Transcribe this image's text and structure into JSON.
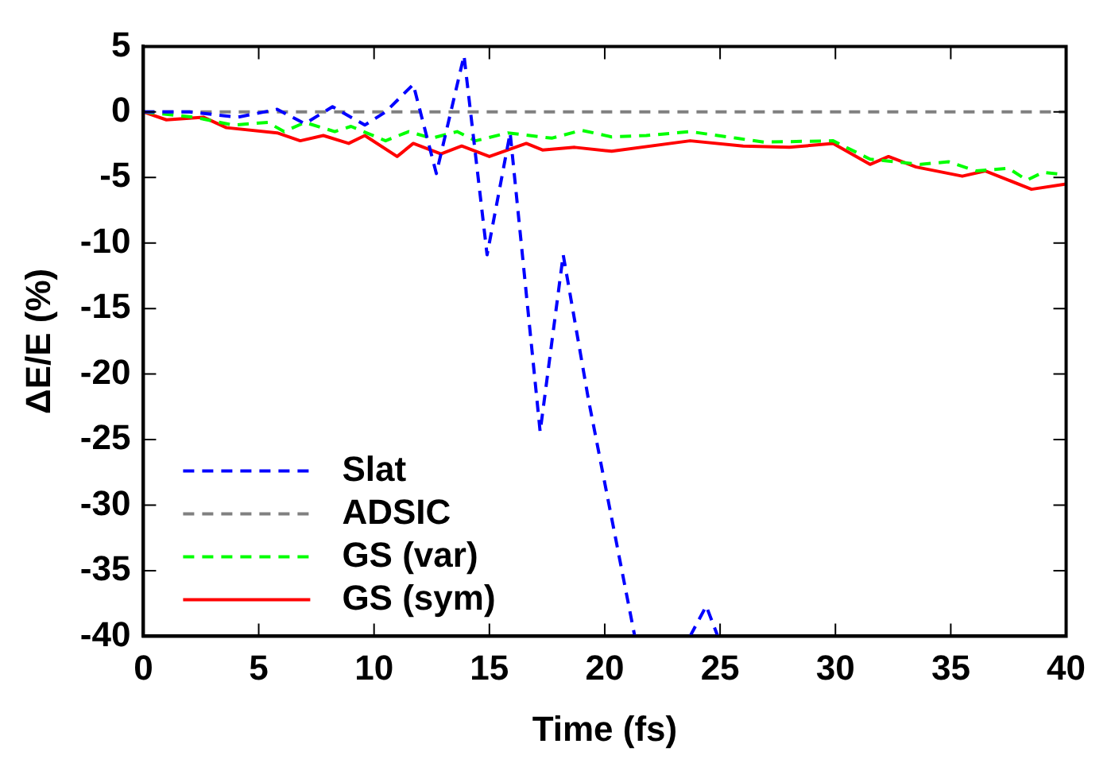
{
  "chart_data": {
    "type": "line",
    "xlabel": "Time (fs)",
    "ylabel": "ΔE/E (%)",
    "xlim": [
      0,
      40
    ],
    "xticks": [
      0,
      5,
      10,
      15,
      20,
      25,
      30,
      35,
      40
    ],
    "ylim": [
      -40,
      5
    ],
    "yticks": [
      5,
      0,
      -5,
      -10,
      -15,
      -20,
      -25,
      -30,
      -35,
      -40
    ],
    "grid": false,
    "legend": "bottom left",
    "marker": "none",
    "series": [
      {
        "name": "Slat",
        "color": "#0000ff",
        "line_style": "dashed",
        "x": [
          0,
          2,
          4.1,
          5.8,
          7,
          8.2,
          9.6,
          10.5,
          11.7,
          12.7,
          13.9,
          14.9,
          15.9,
          17.2,
          18.2,
          19.3,
          21.3,
          21.5,
          23.7,
          24.4,
          24.9
        ],
        "values": [
          0,
          0,
          -0.4,
          0.2,
          -0.9,
          0.4,
          -1,
          0,
          2.1,
          -4.7,
          4.3,
          -10.9,
          -1.6,
          -24.4,
          -10.9,
          -22,
          -40,
          null,
          -40,
          -37.7,
          -40
        ]
      },
      {
        "name": "ADSIC",
        "color": "#808080",
        "line_style": "dashed",
        "x": [
          0,
          40
        ],
        "values": [
          0,
          0
        ]
      },
      {
        "name": "GS (var)",
        "color": "#00ff00",
        "line_style": "dashed",
        "x": [
          0,
          2.2,
          3.9,
          5.4,
          6.1,
          7,
          8.3,
          9,
          10.5,
          11.5,
          12.5,
          13.6,
          14.4,
          15.8,
          17.7,
          19,
          20.3,
          21.8,
          23.7,
          25.7,
          26.9,
          29.9,
          31.5,
          33.7,
          34.9,
          36.1,
          37.5,
          38.3,
          39,
          40
        ],
        "values": [
          0,
          -0.4,
          -1,
          -0.8,
          -1.5,
          -0.8,
          -1.5,
          -1.1,
          -2.2,
          -1.5,
          -2,
          -1.5,
          -2.2,
          -1.6,
          -2,
          -1.4,
          -1.9,
          -1.8,
          -1.5,
          -2,
          -2.3,
          -2.2,
          -3.6,
          -4,
          -3.8,
          -4.5,
          -4.3,
          -5.2,
          -4.6,
          -4.8
        ]
      },
      {
        "name": "GS (sym)",
        "color": "#ff0000",
        "line_style": "solid",
        "x": [
          0,
          1,
          2.6,
          3.6,
          5.8,
          6.8,
          7.8,
          8.9,
          9.6,
          11,
          11.7,
          12.9,
          13.8,
          15,
          16.6,
          17.3,
          18.7,
          20.3,
          23.7,
          26,
          28,
          29.9,
          31.5,
          32.3,
          33.5,
          35.5,
          36.5,
          37.5,
          38.5,
          40
        ],
        "values": [
          0,
          -0.6,
          -0.4,
          -1.2,
          -1.6,
          -2.2,
          -1.8,
          -2.4,
          -1.8,
          -3.4,
          -2.4,
          -3.2,
          -2.6,
          -3.4,
          -2.4,
          -2.9,
          -2.7,
          -3,
          -2.2,
          -2.6,
          -2.7,
          -2.4,
          -4,
          -3.4,
          -4.2,
          -4.9,
          -4.5,
          -5.2,
          -5.9,
          -5.5
        ]
      }
    ]
  }
}
